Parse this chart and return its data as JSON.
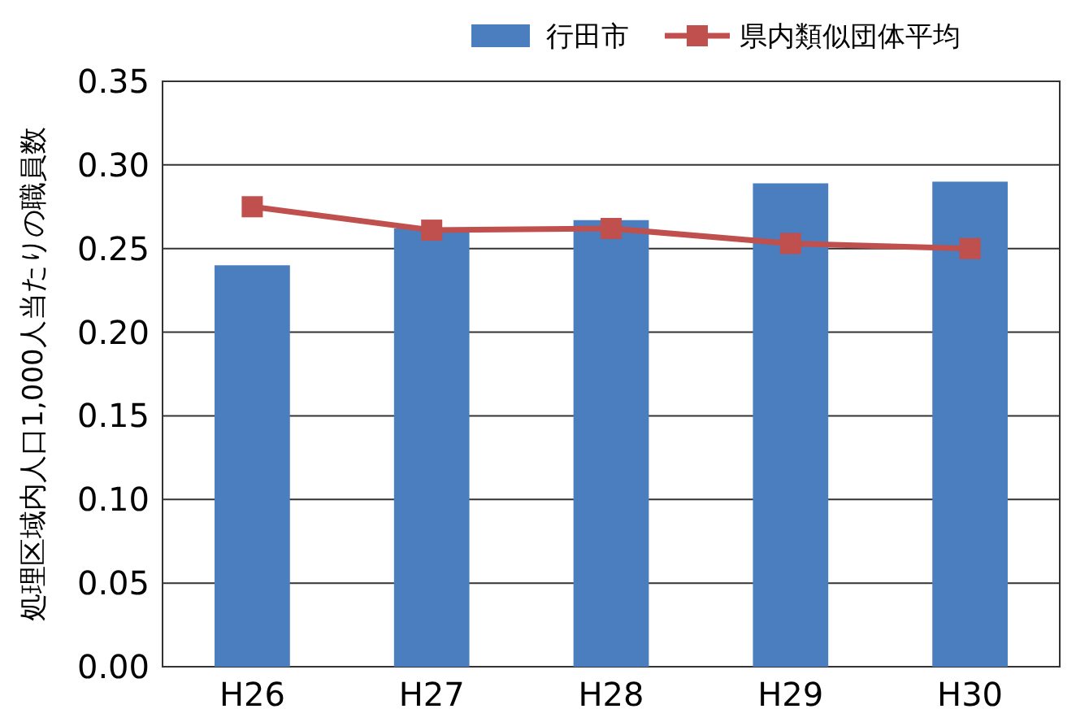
{
  "chart_data": {
    "type": "bar",
    "ylabel": "処理区域内人口1,000人当たりの職員数",
    "categories": [
      "H26",
      "H27",
      "H28",
      "H29",
      "H30"
    ],
    "series": [
      {
        "name": "行田市",
        "color": "#4a7ebf",
        "values": [
          0.24,
          0.262,
          0.267,
          0.289,
          0.29
        ]
      },
      {
        "name": "県内類似団体平均",
        "type": "line",
        "color": "#c0504d",
        "values": [
          0.275,
          0.261,
          0.262,
          0.253,
          0.25
        ]
      }
    ],
    "ylim": [
      0,
      0.35
    ],
    "yticks": [
      {
        "value": 0,
        "label": "0.00"
      },
      {
        "value": 0.05,
        "label": "0.05"
      },
      {
        "value": 0.1,
        "label": "0.10"
      },
      {
        "value": 0.15,
        "label": "0.15"
      },
      {
        "value": 0.2,
        "label": "0.20"
      },
      {
        "value": 0.25,
        "label": "0.25"
      },
      {
        "value": 0.3,
        "label": "0.30"
      },
      {
        "value": 0.35,
        "label": "0.35"
      }
    ],
    "grid": "y",
    "legend": "top right",
    "marker": "square"
  }
}
